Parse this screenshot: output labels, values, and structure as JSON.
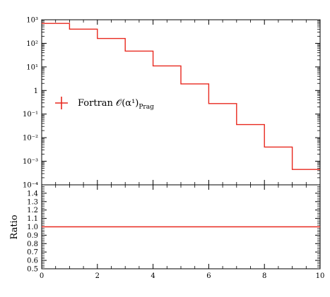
{
  "chart_data": [
    {
      "type": "line",
      "panel": "main",
      "y_scale": "log",
      "xlim": [
        0,
        10
      ],
      "ylim": [
        0.0001,
        1000
      ],
      "y_tick_labels": [
        "10⁻⁴",
        "10⁻³",
        "10⁻²",
        "10⁻¹",
        "1",
        "10¹",
        "10²",
        "10³"
      ],
      "legend": {
        "placement": "left",
        "label": "Fortran 𝒪(α¹)",
        "label_sub": "Prag"
      },
      "series": [
        {
          "name": "Fortran 𝒪(α¹)Prag",
          "color": "#e8281e",
          "bin_edges": [
            0,
            1,
            2,
            3,
            4,
            5,
            6,
            7,
            8,
            9,
            10
          ],
          "values": [
            700,
            400,
            160,
            47,
            11,
            1.9,
            0.28,
            0.036,
            0.004,
            0.00045
          ]
        }
      ]
    },
    {
      "type": "line",
      "panel": "ratio",
      "xlim": [
        0,
        10
      ],
      "ylim": [
        0.5,
        1.5
      ],
      "ylabel": "Ratio",
      "y_tick_labels": [
        "0.5",
        "0.6",
        "0.7",
        "0.8",
        "0.9",
        "1.0",
        "1.1",
        "1.2",
        "1.3",
        "1.4"
      ],
      "x_tick_labels": [
        "0",
        "2",
        "4",
        "6",
        "8",
        "10"
      ],
      "series": [
        {
          "color": "#e8281e",
          "x": [
            0,
            10
          ],
          "values": [
            1.0,
            1.0
          ]
        }
      ]
    }
  ]
}
